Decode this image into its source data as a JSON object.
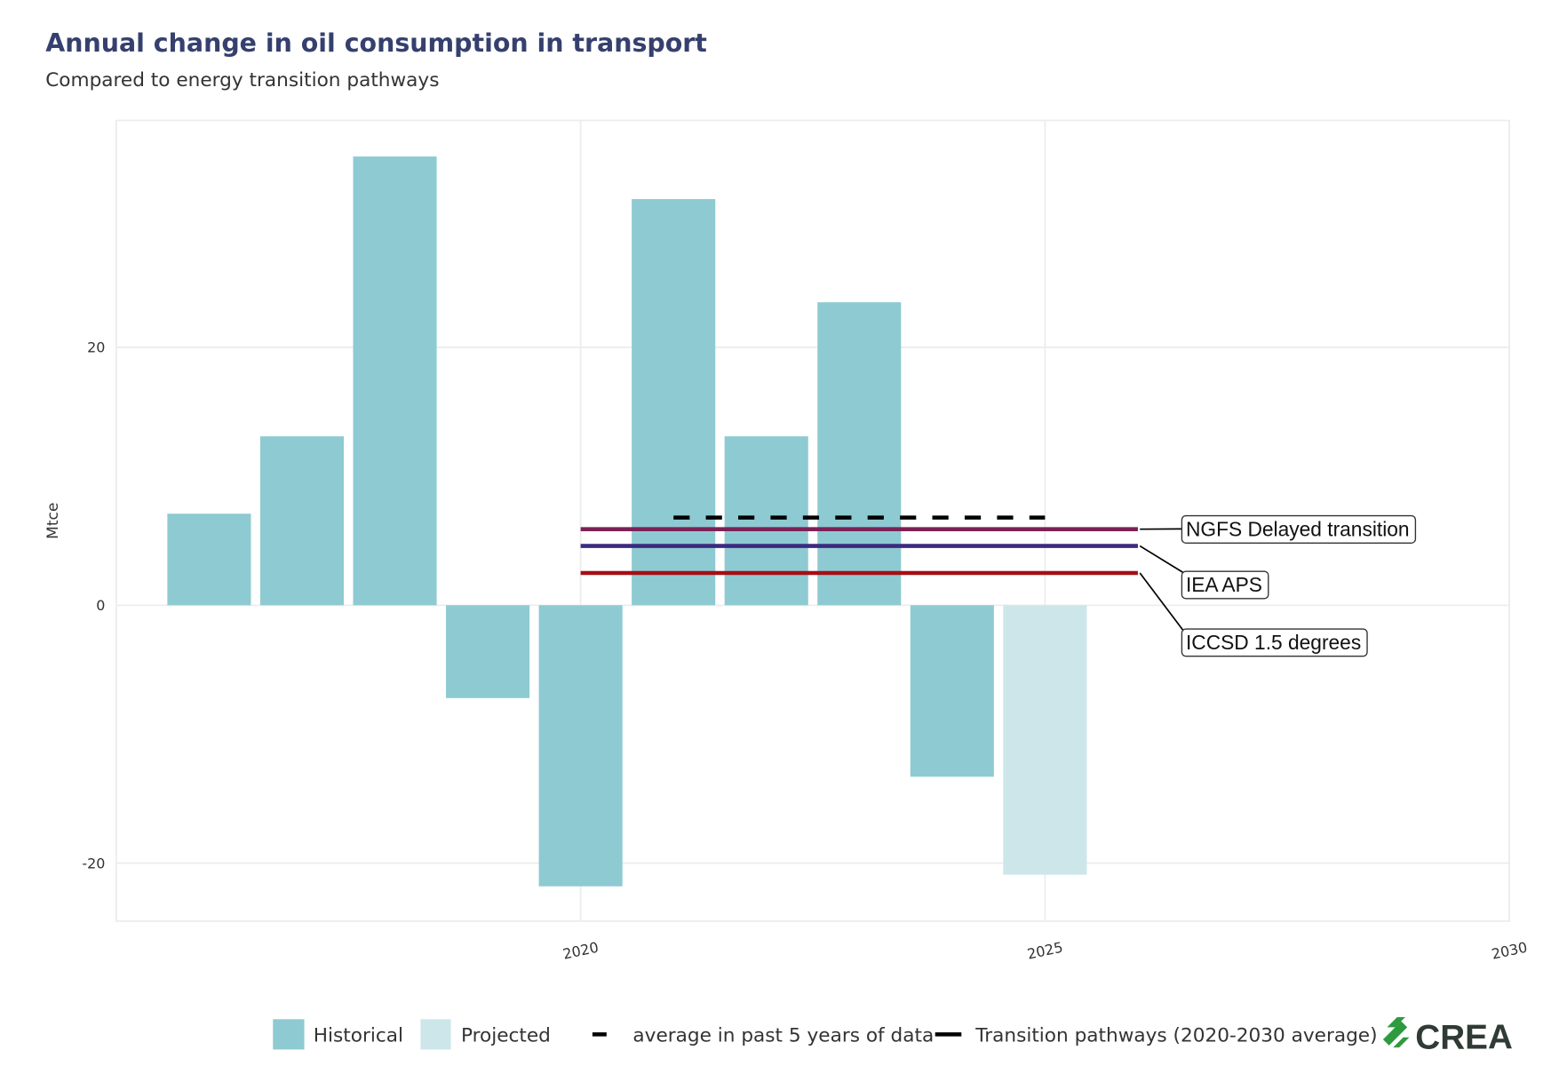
{
  "chart_data": {
    "type": "bar",
    "title": "Annual change in oil consumption in transport",
    "subtitle": "Compared to energy transition pathways",
    "xlabel": "",
    "ylabel": "Mtce",
    "xlim": [
      2015,
      2030
    ],
    "ylim": [
      -24.5,
      37.6
    ],
    "grid": true,
    "x_ticks": [
      2020,
      2025,
      2030
    ],
    "x_tick_labels": [
      "2020",
      "2025",
      "2030"
    ],
    "y_ticks": [
      -20,
      0,
      20
    ],
    "y_tick_labels": [
      "-20",
      "0",
      "20"
    ],
    "bars": [
      {
        "year": 2016,
        "value": 7.1,
        "type": "Historical"
      },
      {
        "year": 2017,
        "value": 13.1,
        "type": "Historical"
      },
      {
        "year": 2018,
        "value": 34.8,
        "type": "Historical"
      },
      {
        "year": 2019,
        "value": -7.2,
        "type": "Historical"
      },
      {
        "year": 2020,
        "value": -21.8,
        "type": "Historical"
      },
      {
        "year": 2021,
        "value": 31.5,
        "type": "Historical"
      },
      {
        "year": 2022,
        "value": 13.1,
        "type": "Historical"
      },
      {
        "year": 2023,
        "value": 23.5,
        "type": "Historical"
      },
      {
        "year": 2024,
        "value": -13.3,
        "type": "Historical"
      },
      {
        "year": 2025,
        "value": -20.9,
        "type": "Projected"
      }
    ],
    "average_line": {
      "name": "average in past 5 years of data",
      "value": 6.8,
      "x_start": 2021,
      "x_end": 2025
    },
    "pathways": [
      {
        "name": "NGFS Delayed transition",
        "value": 5.9,
        "x_start": 2020,
        "x_end": 2026,
        "color": "#7b2155"
      },
      {
        "name": "IEA APS",
        "value": 4.6,
        "x_start": 2020,
        "x_end": 2026,
        "color": "#3b2a80"
      },
      {
        "name": "ICCSD 1.5 degrees",
        "value": 2.5,
        "x_start": 2020,
        "x_end": 2026,
        "color": "#a50f15"
      }
    ],
    "colors": {
      "Historical": "#8ecad1",
      "Projected": "#cde6ea"
    },
    "legend": {
      "placement": "bottom",
      "items": [
        "Historical",
        "Projected",
        "average in past 5 years of data",
        "Transition pathways (2020-2030 average)"
      ]
    }
  },
  "branding": {
    "logo_text": "CREA"
  }
}
